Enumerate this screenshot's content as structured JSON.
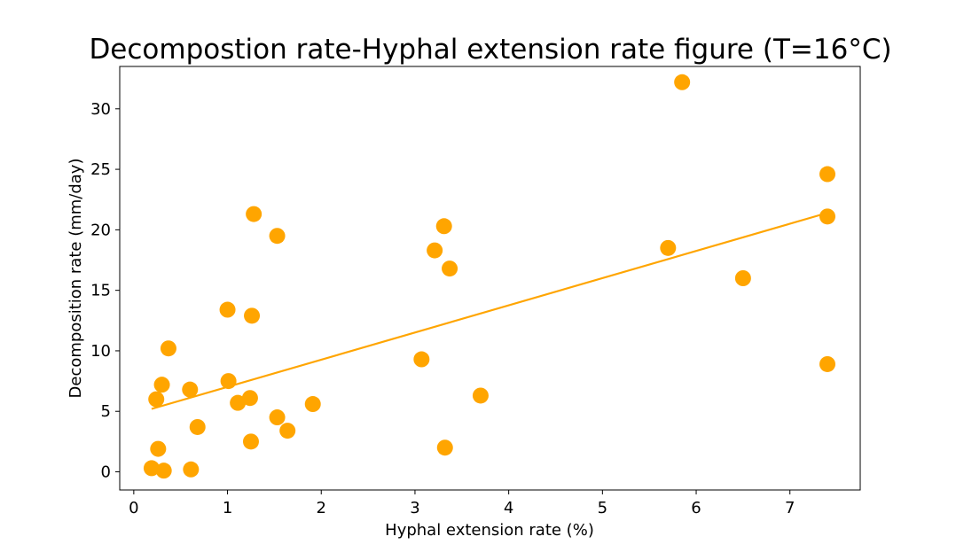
{
  "chart_data": {
    "type": "scatter",
    "title": "Decompostion rate-Hyphal extension rate figure (T=16°C)",
    "xlabel": "Hyphal extension rate (%)",
    "ylabel": "Decomposition rate (mm/day)",
    "xlim": [
      -0.15,
      7.75
    ],
    "ylim": [
      -1.5,
      33.5
    ],
    "xticks": [
      0,
      1,
      2,
      3,
      4,
      5,
      6,
      7
    ],
    "yticks": [
      0,
      5,
      10,
      15,
      20,
      25,
      30
    ],
    "grid": false,
    "color": "#FFA500",
    "points": [
      {
        "x": 0.19,
        "y": 0.3
      },
      {
        "x": 0.24,
        "y": 6.0
      },
      {
        "x": 0.26,
        "y": 1.9
      },
      {
        "x": 0.3,
        "y": 7.2
      },
      {
        "x": 0.32,
        "y": 0.1
      },
      {
        "x": 0.37,
        "y": 10.2
      },
      {
        "x": 0.6,
        "y": 6.8
      },
      {
        "x": 0.61,
        "y": 0.2
      },
      {
        "x": 0.68,
        "y": 3.7
      },
      {
        "x": 1.0,
        "y": 13.4
      },
      {
        "x": 1.01,
        "y": 7.5
      },
      {
        "x": 1.11,
        "y": 5.7
      },
      {
        "x": 1.24,
        "y": 6.1
      },
      {
        "x": 1.25,
        "y": 2.5
      },
      {
        "x": 1.26,
        "y": 12.9
      },
      {
        "x": 1.28,
        "y": 21.3
      },
      {
        "x": 1.53,
        "y": 19.5
      },
      {
        "x": 1.53,
        "y": 4.5
      },
      {
        "x": 1.64,
        "y": 3.4
      },
      {
        "x": 1.91,
        "y": 5.6
      },
      {
        "x": 3.07,
        "y": 9.3
      },
      {
        "x": 3.21,
        "y": 18.3
      },
      {
        "x": 3.31,
        "y": 20.3
      },
      {
        "x": 3.32,
        "y": 2.0
      },
      {
        "x": 3.37,
        "y": 16.8
      },
      {
        "x": 3.7,
        "y": 6.3
      },
      {
        "x": 5.7,
        "y": 18.5
      },
      {
        "x": 5.85,
        "y": 32.2
      },
      {
        "x": 6.5,
        "y": 16.0
      },
      {
        "x": 7.4,
        "y": 24.6
      },
      {
        "x": 7.4,
        "y": 21.1
      },
      {
        "x": 7.4,
        "y": 8.9
      }
    ],
    "trendline": {
      "x": [
        0.19,
        7.4
      ],
      "y": [
        5.2,
        21.4
      ]
    }
  }
}
